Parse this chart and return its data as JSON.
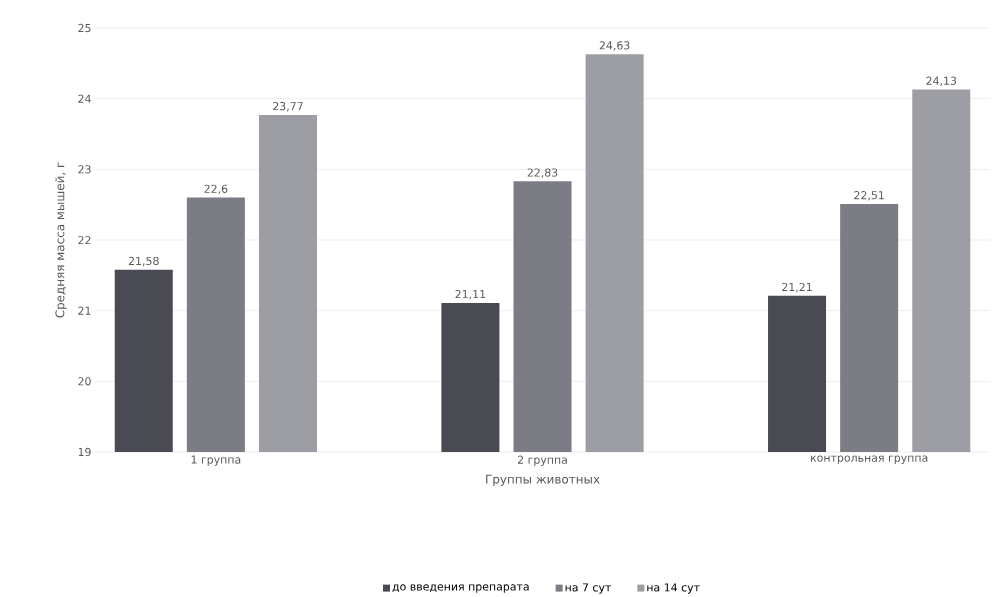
{
  "chart_data": {
    "type": "bar",
    "xlabel": "Группы животных",
    "ylabel": "Средняя масса мышей, г",
    "categories": [
      "1 группа",
      "2 группа",
      "контрольная группа"
    ],
    "series": [
      {
        "name": "до введения препарата",
        "color": "#4a4a52",
        "values": [
          21.58,
          21.11,
          21.21
        ],
        "value_labels": [
          "21,58",
          "21,11",
          "21,21"
        ]
      },
      {
        "name": "на 7 сут",
        "color": "#7c7c84",
        "values": [
          22.6,
          22.83,
          22.51
        ],
        "value_labels": [
          "22,6",
          "22,83",
          "22,51"
        ]
      },
      {
        "name": "на 14 сут",
        "color": "#9d9da4",
        "values": [
          23.77,
          24.63,
          24.13
        ],
        "value_labels": [
          "23,77",
          "24,63",
          "24,13"
        ]
      }
    ],
    "ylim": [
      19,
      25
    ],
    "yticks": [
      19,
      20,
      21,
      22,
      23,
      24,
      25
    ],
    "grid": "y",
    "legend": "bottom"
  }
}
